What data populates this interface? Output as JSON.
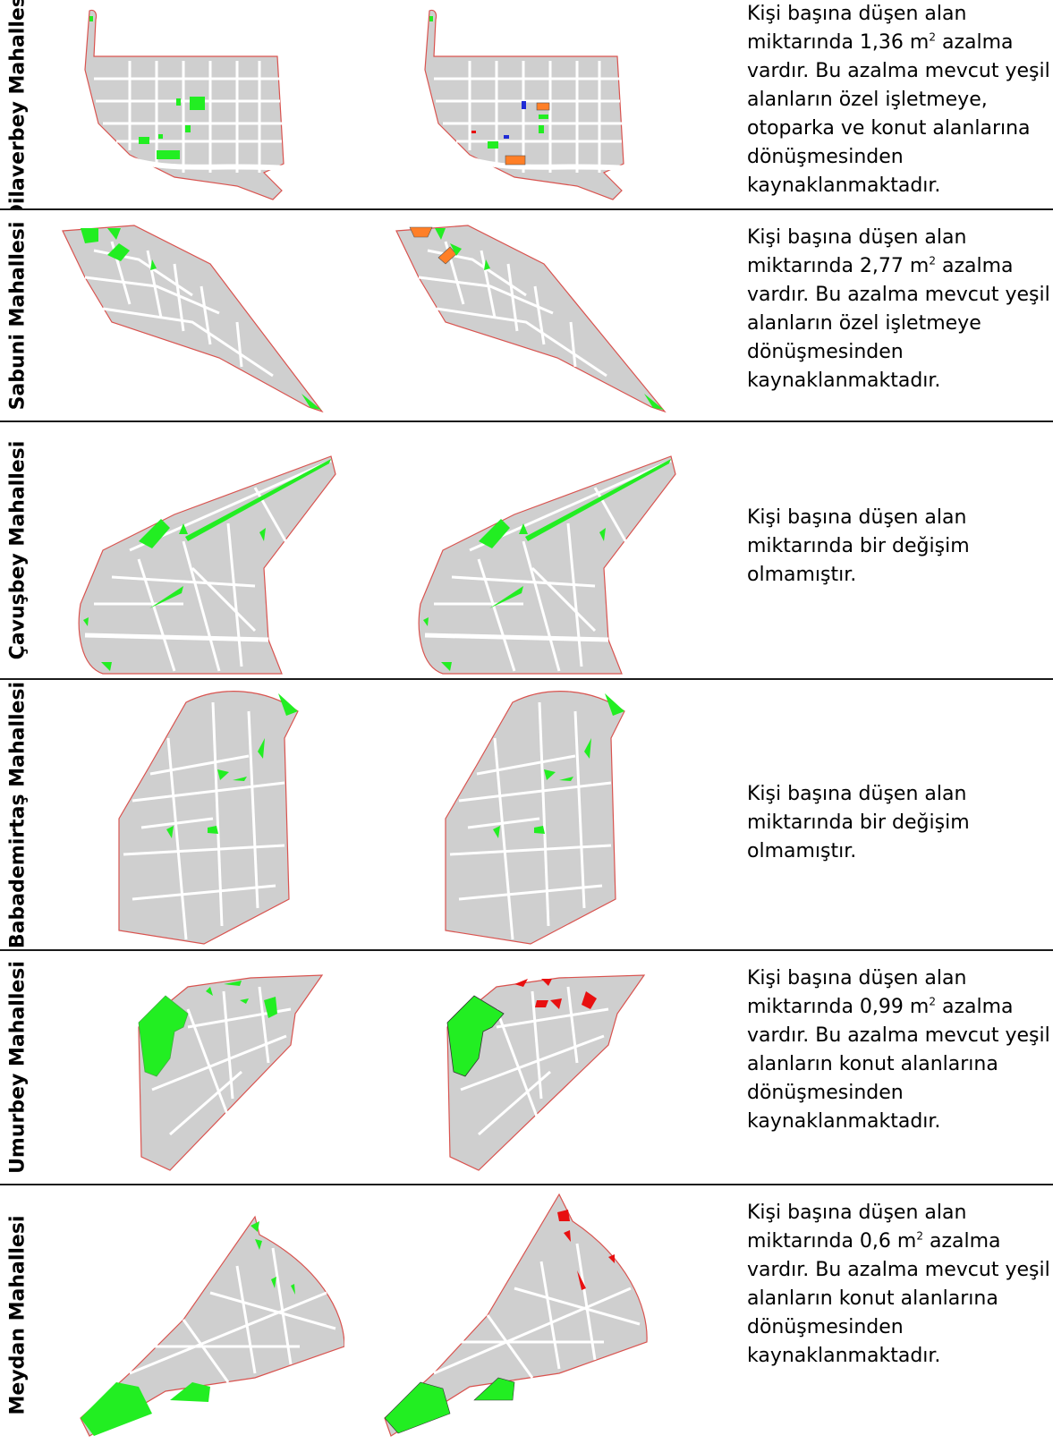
{
  "rows": [
    {
      "neighborhood": "Dilaverbey Mahallesi",
      "description": [
        "Kişi başına düşen alan",
        "miktarında 1,36 m",
        "2",
        " azalma",
        "vardır. Bu azalma mevcut yeşil",
        "alanların özel işletmeye,",
        "otoparka ve konut alanlarına",
        "dönüşmesinden",
        "kaynaklanmaktadır."
      ]
    },
    {
      "neighborhood": "Sabuni Mahallesi",
      "description": [
        "Kişi başına düşen alan",
        "miktarında 2,77 m",
        "2",
        " azalma",
        "vardır. Bu azalma mevcut yeşil",
        "alanların özel işletmeye",
        "dönüşmesinden",
        "kaynaklanmaktadır."
      ]
    },
    {
      "neighborhood": "Çavuşbey Mahallesi",
      "description": [
        "Kişi başına düşen alan",
        "miktarında bir değişim",
        "olmamıştır."
      ]
    },
    {
      "neighborhood": "Babademirtaş Mahallesi",
      "description": [
        "Kişi başına düşen alan",
        "miktarında bir değişim",
        "olmamıştır."
      ]
    },
    {
      "neighborhood": "Umurbey Mahallesi",
      "description": [
        "Kişi başına düşen alan",
        "miktarında 0,99 m",
        "2",
        " azalma",
        "vardır. Bu azalma mevcut yeşil",
        "alanların konut alanlarına",
        "dönüşmesinden",
        "kaynaklanmaktadır."
      ]
    },
    {
      "neighborhood": "Meydan Mahallesi",
      "description": [
        "Kişi başına düşen alan",
        "miktarında 0,6 m",
        "2",
        " azalma",
        "vardır. Bu azalma mevcut yeşil",
        "alanların konut alanlarına",
        "dönüşmesinden",
        "kaynaklanmaktadır."
      ]
    }
  ],
  "colors": {
    "map_fill": "#cfcfcf",
    "boundary": "#d9534f",
    "green_area": "#22ee22",
    "private_business": "#ff7f27",
    "parking": "#1f2bd6",
    "residential": "#e81010"
  }
}
